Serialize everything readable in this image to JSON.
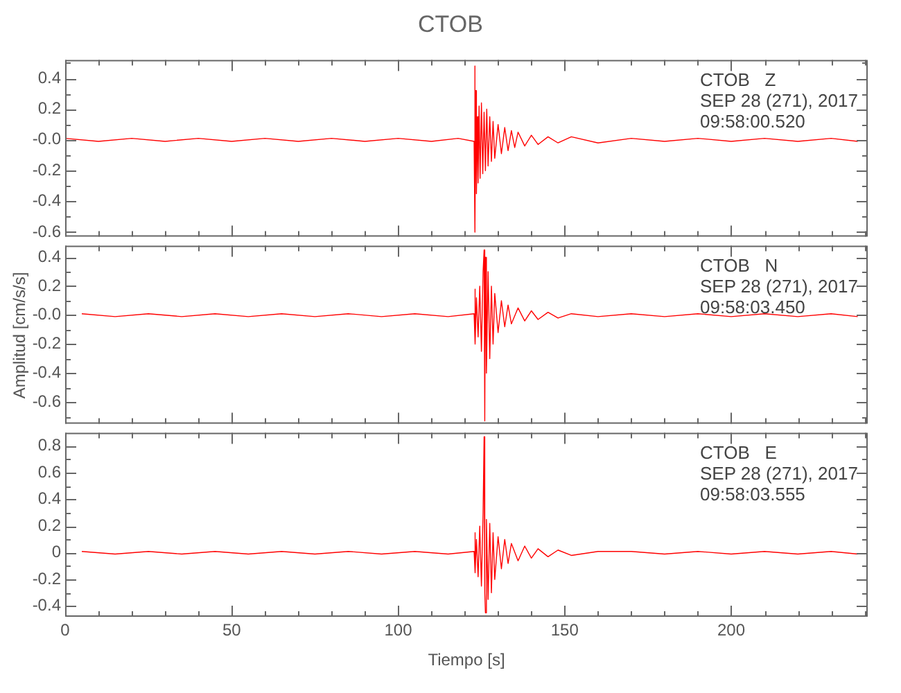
{
  "chart_data": [
    {
      "type": "line",
      "title": "CTOB",
      "annotations": [
        "CTOB   Z",
        "SEP 28 (271), 2017",
        "09:58:00.520"
      ],
      "marker": "none",
      "tick_labels": "y",
      "x": [
        0,
        10,
        20,
        30,
        40,
        50,
        60,
        70,
        80,
        90,
        100,
        110,
        118,
        122.8,
        123,
        123.1,
        123.3,
        123.5,
        123.8,
        124,
        124.3,
        124.6,
        125,
        125.4,
        125.8,
        126.2,
        126.6,
        127,
        127.5,
        128,
        128.5,
        129,
        130,
        131,
        132,
        133,
        134,
        135,
        136,
        138,
        140,
        142,
        145,
        148,
        152,
        160,
        170,
        180,
        190,
        200,
        210,
        220,
        230,
        238
      ],
      "series": [
        {
          "color": "#ff0000",
          "values": [
            0.01,
            -0.01,
            0.01,
            -0.01,
            0.01,
            -0.01,
            0.01,
            -0.01,
            0.01,
            -0.01,
            0.01,
            -0.01,
            0.01,
            -0.01,
            0.48,
            -0.6,
            0.32,
            -0.35,
            0.15,
            -0.28,
            0.22,
            -0.25,
            0.24,
            -0.22,
            0.18,
            -0.2,
            0.2,
            -0.17,
            0.15,
            -0.14,
            0.12,
            -0.12,
            0.1,
            -0.09,
            0.08,
            -0.07,
            0.06,
            -0.05,
            0.05,
            -0.04,
            0.03,
            -0.03,
            0.02,
            -0.02,
            0.02,
            -0.02,
            0.01,
            -0.01,
            0.01,
            -0.01,
            0.01,
            -0.01,
            0.01,
            -0.01
          ]
        }
      ],
      "xlim": [
        0,
        241
      ],
      "xticks": [
        0,
        {
          "value": 10,
          "label": null
        },
        {
          "value": 20,
          "label": null
        },
        {
          "value": 30,
          "label": null
        },
        {
          "value": 40,
          "label": null
        },
        50,
        {
          "value": 60,
          "label": null
        },
        {
          "value": 70,
          "label": null
        },
        {
          "value": 80,
          "label": null
        },
        {
          "value": 90,
          "label": null
        },
        100,
        {
          "value": 110,
          "label": null
        },
        {
          "value": 120,
          "label": null
        },
        {
          "value": 130,
          "label": null
        },
        {
          "value": 140,
          "label": null
        },
        150,
        {
          "value": 160,
          "label": null
        },
        {
          "value": 170,
          "label": null
        },
        {
          "value": 180,
          "label": null
        },
        {
          "value": 190,
          "label": null
        },
        200,
        {
          "value": 210,
          "label": null
        },
        {
          "value": 220,
          "label": null
        },
        {
          "value": 230,
          "label": null
        },
        {
          "value": 240,
          "label": null
        }
      ],
      "ylim": [
        -0.63,
        0.52
      ],
      "yticks": [
        -0.6,
        {
          "value": -0.5,
          "label": null
        },
        -0.4,
        {
          "value": -0.3,
          "label": null
        },
        -0.2,
        {
          "value": -0.1,
          "label": null
        },
        {
          "value": 0,
          "label": "-0.0"
        },
        {
          "value": 0.1,
          "label": null
        },
        0.2,
        {
          "value": 0.3,
          "label": null
        },
        0.4,
        {
          "value": 0.5,
          "label": null
        }
      ]
    },
    {
      "type": "line",
      "ylabel": "Amplitud [cm/s/s]",
      "annotations": [
        "CTOB   N",
        "SEP 28 (271), 2017",
        "09:58:03.450"
      ],
      "marker": "none",
      "tick_labels": "y",
      "x": [
        5,
        15,
        25,
        35,
        45,
        55,
        65,
        75,
        85,
        95,
        105,
        115,
        122.8,
        123,
        123.2,
        123.5,
        124,
        124.5,
        125,
        125.5,
        125.8,
        126,
        126.2,
        126.5,
        127,
        127.5,
        128,
        128.5,
        129,
        130,
        131,
        132,
        133,
        134,
        136,
        138,
        140,
        142,
        145,
        148,
        152,
        160,
        170,
        180,
        190,
        200,
        210,
        220,
        230,
        238
      ],
      "series": [
        {
          "color": "#ff0000",
          "values": [
            0.01,
            -0.01,
            0.01,
            -0.01,
            0.01,
            -0.01,
            0.01,
            -0.01,
            0.01,
            -0.01,
            0.01,
            -0.01,
            0.01,
            0.18,
            -0.2,
            0.12,
            -0.15,
            0.2,
            -0.25,
            0.3,
            0.45,
            -0.73,
            0.4,
            -0.4,
            0.3,
            -0.3,
            0.2,
            -0.2,
            0.15,
            -0.12,
            0.1,
            -0.08,
            0.07,
            -0.06,
            0.05,
            -0.04,
            0.03,
            -0.03,
            0.02,
            -0.02,
            0.01,
            -0.01,
            0.01,
            -0.01,
            0.01,
            -0.01,
            0.01,
            -0.01,
            0.01,
            -0.01
          ]
        }
      ],
      "xlim": [
        0,
        241
      ],
      "xticks": [
        0,
        {
          "value": 10,
          "label": null
        },
        {
          "value": 20,
          "label": null
        },
        {
          "value": 30,
          "label": null
        },
        {
          "value": 40,
          "label": null
        },
        50,
        {
          "value": 60,
          "label": null
        },
        {
          "value": 70,
          "label": null
        },
        {
          "value": 80,
          "label": null
        },
        {
          "value": 90,
          "label": null
        },
        100,
        {
          "value": 110,
          "label": null
        },
        {
          "value": 120,
          "label": null
        },
        {
          "value": 130,
          "label": null
        },
        {
          "value": 140,
          "label": null
        },
        150,
        {
          "value": 160,
          "label": null
        },
        {
          "value": 170,
          "label": null
        },
        {
          "value": 180,
          "label": null
        },
        {
          "value": 190,
          "label": null
        },
        200,
        {
          "value": 210,
          "label": null
        },
        {
          "value": 220,
          "label": null
        },
        {
          "value": 230,
          "label": null
        },
        {
          "value": 240,
          "label": null
        }
      ],
      "ylim": [
        -0.75,
        0.48
      ],
      "yticks": [
        {
          "value": -0.7,
          "label": null
        },
        -0.6,
        {
          "value": -0.5,
          "label": null
        },
        -0.4,
        {
          "value": -0.3,
          "label": null
        },
        -0.2,
        {
          "value": -0.1,
          "label": null
        },
        {
          "value": 0,
          "label": "-0.0"
        },
        {
          "value": 0.1,
          "label": null
        },
        0.2,
        {
          "value": 0.3,
          "label": null
        },
        0.4
      ]
    },
    {
      "type": "line",
      "xlabel": "Tiempo [s]",
      "annotations": [
        "CTOB   E",
        "SEP 28 (271), 2017",
        "09:58:03.555"
      ],
      "marker": "none",
      "x": [
        5,
        15,
        25,
        35,
        45,
        55,
        65,
        75,
        85,
        95,
        105,
        115,
        122.8,
        123,
        123.2,
        123.5,
        124,
        124.5,
        125,
        125.5,
        125.8,
        126,
        126.2,
        126.5,
        127,
        127.5,
        128,
        128.5,
        129,
        130,
        131,
        132,
        133,
        134,
        136,
        138,
        140,
        142,
        145,
        148,
        152,
        160,
        170,
        180,
        190,
        200,
        210,
        220,
        230,
        238
      ],
      "series": [
        {
          "color": "#ff0000",
          "values": [
            0.01,
            -0.01,
            0.01,
            -0.01,
            0.01,
            -0.01,
            0.01,
            -0.01,
            0.01,
            -0.01,
            0.01,
            -0.01,
            0.01,
            0.15,
            -0.15,
            0.1,
            -0.18,
            0.2,
            -0.25,
            0.3,
            0.87,
            -0.3,
            -0.45,
            0.25,
            -0.35,
            0.22,
            -0.3,
            0.15,
            -0.2,
            0.12,
            -0.12,
            0.1,
            -0.08,
            0.07,
            -0.06,
            0.05,
            -0.04,
            0.03,
            -0.03,
            0.02,
            -0.02,
            0.01,
            0.01,
            -0.01,
            0.01,
            -0.01,
            0.01,
            -0.01,
            0.01,
            -0.01
          ]
        }
      ],
      "xlim": [
        0,
        241
      ],
      "xticks": [
        0,
        {
          "value": 10,
          "label": null
        },
        {
          "value": 20,
          "label": null
        },
        {
          "value": 30,
          "label": null
        },
        {
          "value": 40,
          "label": null
        },
        50,
        {
          "value": 60,
          "label": null
        },
        {
          "value": 70,
          "label": null
        },
        {
          "value": 80,
          "label": null
        },
        {
          "value": 90,
          "label": null
        },
        100,
        {
          "value": 110,
          "label": null
        },
        {
          "value": 120,
          "label": null
        },
        {
          "value": 130,
          "label": null
        },
        {
          "value": 140,
          "label": null
        },
        150,
        {
          "value": 160,
          "label": null
        },
        {
          "value": 170,
          "label": null
        },
        {
          "value": 180,
          "label": null
        },
        {
          "value": 190,
          "label": null
        },
        200,
        {
          "value": 210,
          "label": null
        },
        {
          "value": 220,
          "label": null
        },
        {
          "value": 230,
          "label": null
        },
        {
          "value": 240,
          "label": null
        }
      ],
      "ylim": [
        -0.48,
        0.9
      ],
      "yticks": [
        -0.4,
        {
          "value": -0.3,
          "label": null
        },
        -0.2,
        {
          "value": -0.1,
          "label": null
        },
        0.0,
        {
          "value": 0.1,
          "label": null
        },
        0.2,
        {
          "value": 0.3,
          "label": null
        },
        0.4,
        {
          "value": 0.5,
          "label": null
        },
        0.6,
        {
          "value": 0.7,
          "label": null
        },
        0.8
      ]
    }
  ]
}
